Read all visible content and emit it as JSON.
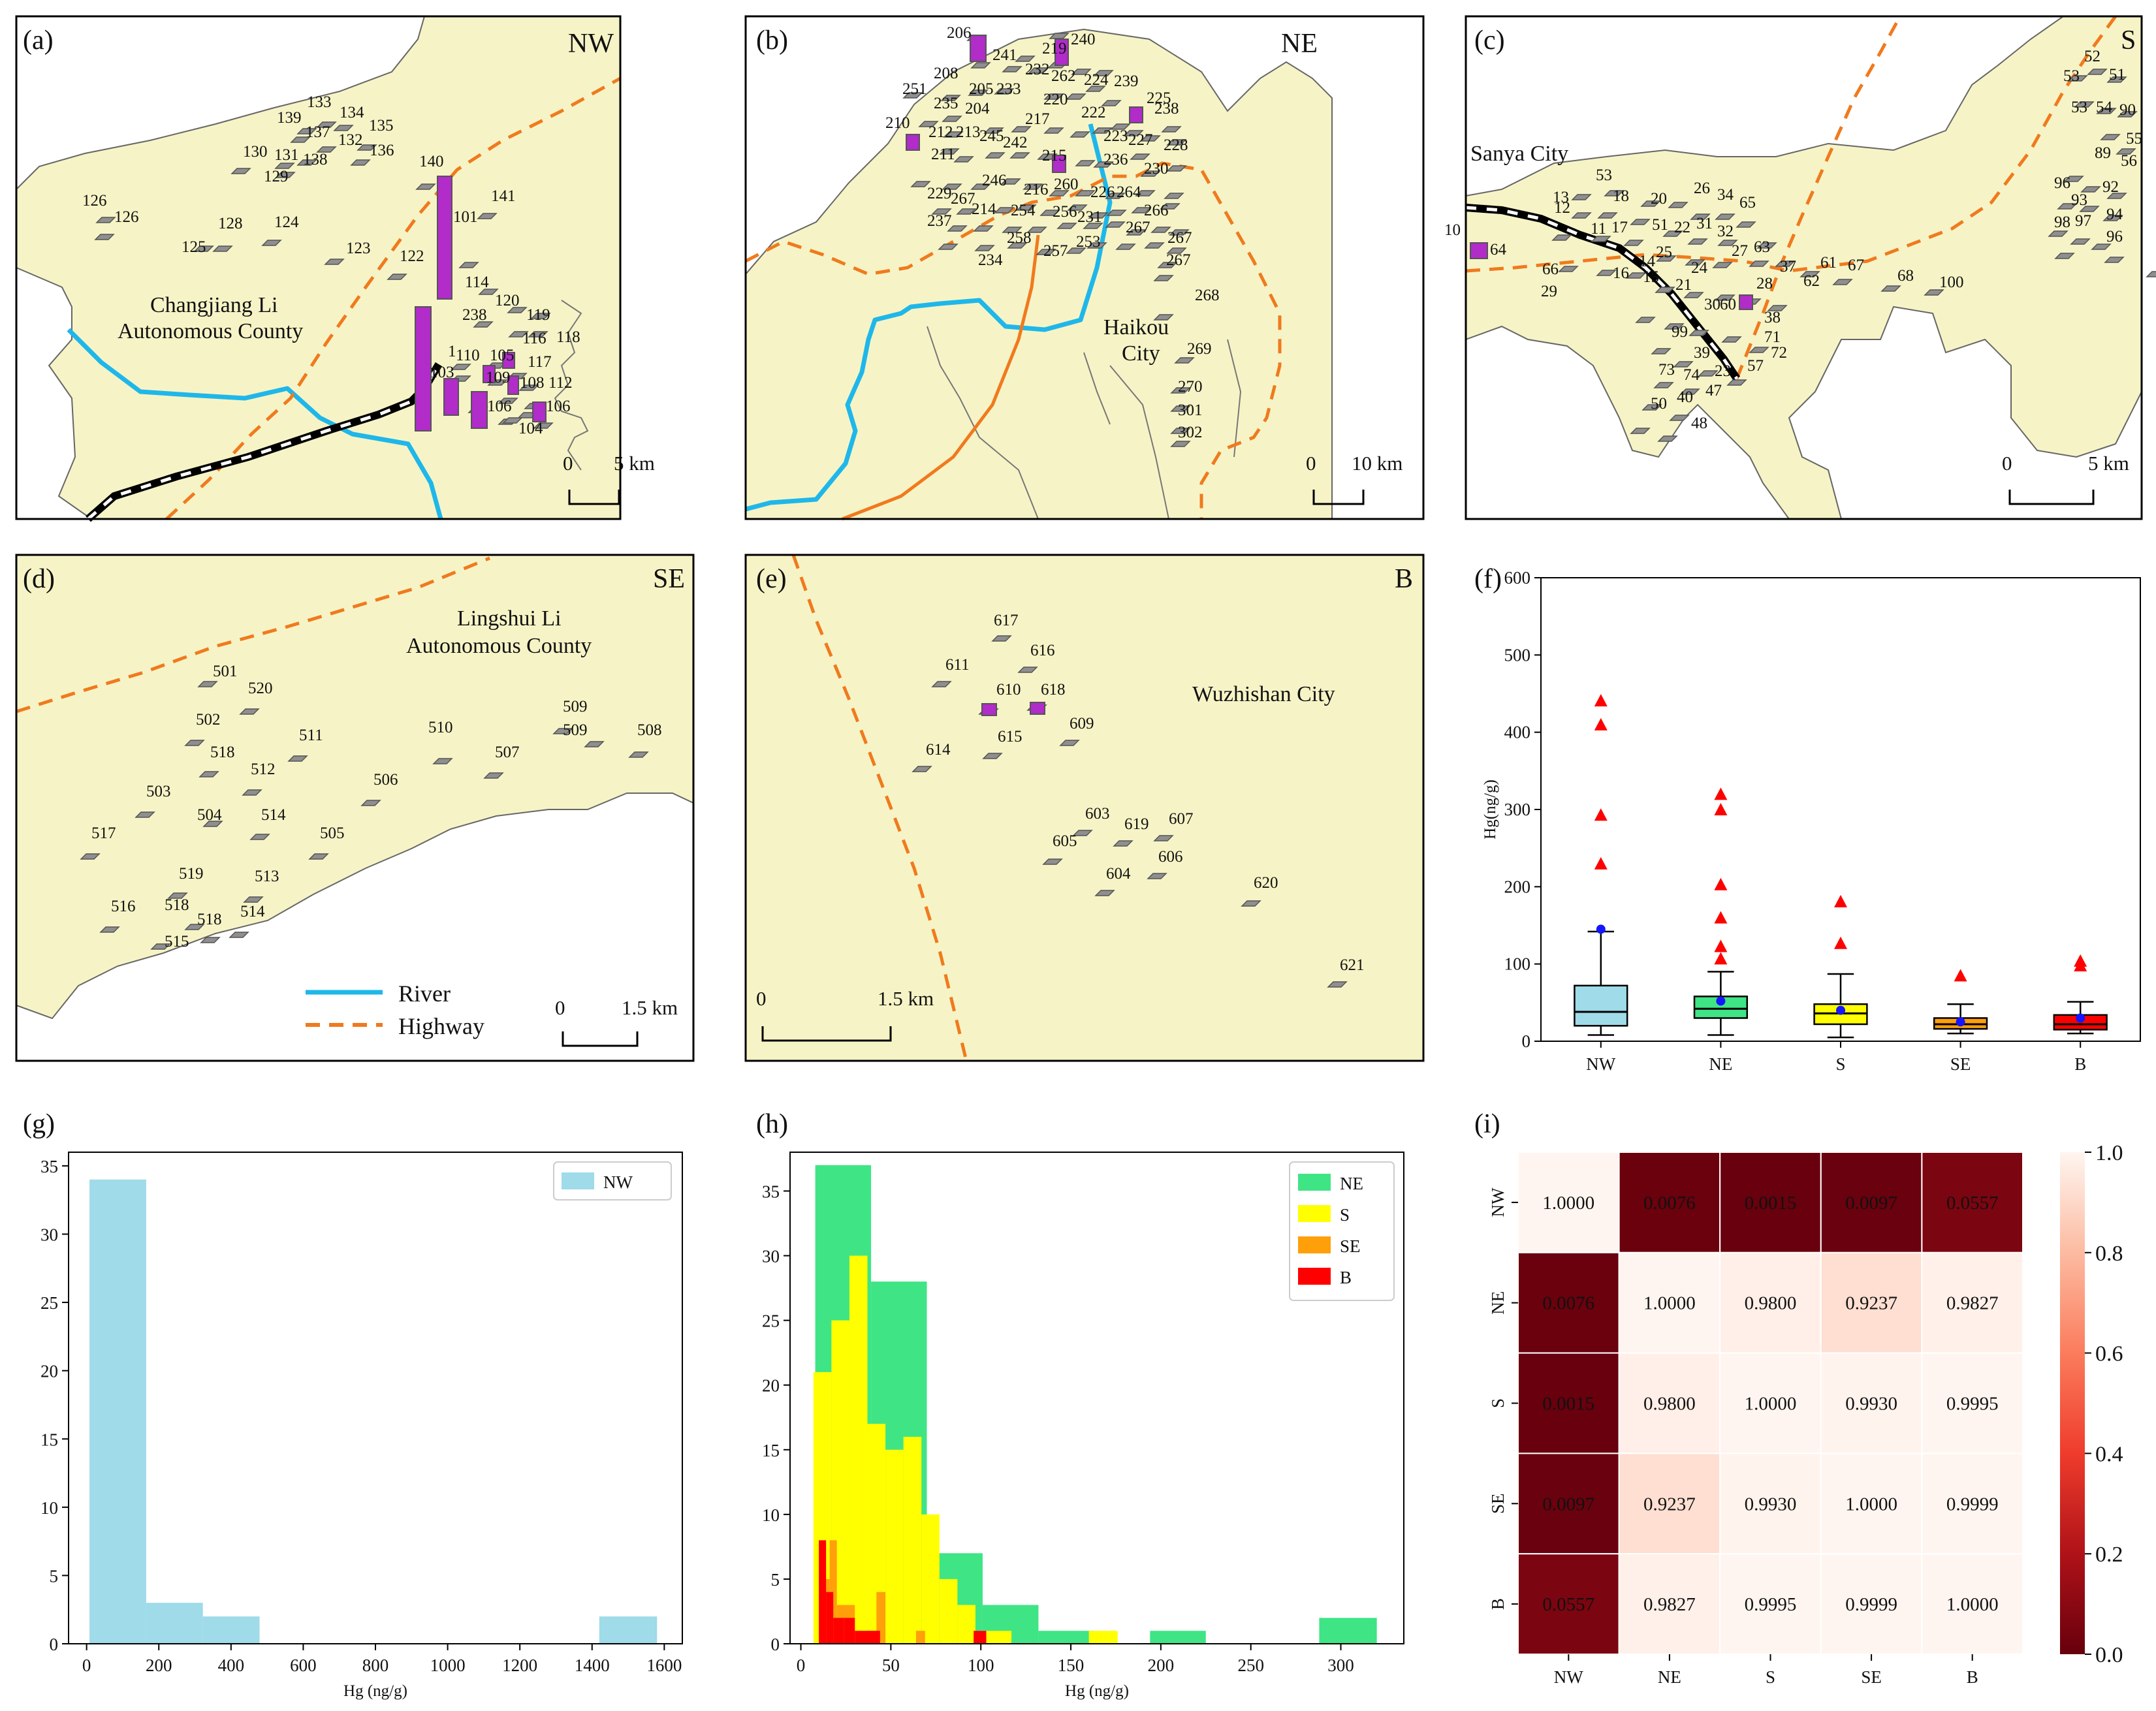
{
  "colors": {
    "land": "#f6f4c6",
    "sea": "#ffffff",
    "river": "#1fb7ea",
    "highway": "#f07a1e",
    "railway": "#000000",
    "sample_fill": "#8f8f8f",
    "sample_high": "#b12cc9",
    "nw": "#9fdbe9",
    "ne": "#3fe585",
    "s": "#ffff00",
    "se": "#ff9f0a",
    "b": "#ff0000",
    "outlier": "#ff0000",
    "mean": "#1515ff"
  },
  "maps": [
    {
      "id": "a",
      "panel": "(a)",
      "region": "NW",
      "places": [
        "Changjiang Li",
        "Autonomous County"
      ],
      "scale": [
        "0",
        "5 km"
      ],
      "labels": [
        "126",
        "126",
        "139",
        "133",
        "134",
        "137",
        "135",
        "132",
        "136",
        "130",
        "131",
        "138",
        "129",
        "140",
        "141",
        "128",
        "124",
        "125",
        "123",
        "122",
        "101",
        "114",
        "120",
        "238",
        "119",
        "116",
        "118",
        "110",
        "105",
        "117",
        "103",
        "108",
        "109",
        "112",
        "106",
        "106",
        "104",
        "1"
      ]
    },
    {
      "id": "b",
      "panel": "(b)",
      "region": "NE",
      "places": [
        "Haikou",
        "City"
      ],
      "scale": [
        "0",
        "10 km"
      ],
      "labels": [
        "206",
        "240",
        "219",
        "241",
        "208",
        "232",
        "262",
        "224",
        "239",
        "251",
        "205",
        "233",
        "220",
        "225",
        "235",
        "204",
        "222",
        "238",
        "210",
        "212",
        "213",
        "245",
        "217",
        "223",
        "227",
        "228",
        "211",
        "242",
        "215",
        "236",
        "230",
        "229",
        "246",
        "216",
        "260",
        "226",
        "264",
        "266",
        "267",
        "237",
        "214",
        "254",
        "256",
        "231",
        "267",
        "258",
        "257",
        "253",
        "267",
        "234",
        "267",
        "268",
        "269",
        "270",
        "301",
        "302"
      ]
    },
    {
      "id": "c",
      "panel": "(c)",
      "region": "S",
      "places": [
        "Sanya City"
      ],
      "scale": [
        "0",
        "5 km"
      ],
      "labels": [
        "52",
        "53",
        "51",
        "53",
        "54",
        "90",
        "55",
        "89",
        "56",
        "96",
        "92",
        "93",
        "98",
        "97",
        "94",
        "96",
        "13",
        "53",
        "18",
        "20",
        "26",
        "34",
        "65",
        "10",
        "12",
        "11",
        "17",
        "51",
        "22",
        "31",
        "32",
        "64",
        "27",
        "63",
        "66",
        "16",
        "15",
        "25",
        "24",
        "37",
        "61",
        "67",
        "29",
        "14",
        "28",
        "62",
        "68",
        "100",
        "99",
        "21",
        "30",
        "60",
        "38",
        "71",
        "72",
        "73",
        "39",
        "23",
        "57",
        "74",
        "40",
        "47",
        "50",
        "48",
        "49"
      ]
    },
    {
      "id": "d",
      "panel": "(d)",
      "region": "SE",
      "places": [
        "Lingshui Li",
        "Autonomous County"
      ],
      "scale": [
        "0",
        "1.5 km"
      ],
      "labels": [
        "501",
        "520",
        "509",
        "509",
        "508",
        "502",
        "511",
        "510",
        "507",
        "518",
        "512",
        "506",
        "503",
        "504",
        "514",
        "505",
        "517",
        "519",
        "513",
        "516",
        "518",
        "514",
        "518",
        "515"
      ],
      "legend": [
        "River",
        "Highway"
      ]
    },
    {
      "id": "e",
      "panel": "(e)",
      "region": "B",
      "places": [
        "Wuzhishan City"
      ],
      "scale": [
        "0",
        "1.5 km"
      ],
      "labels": [
        "617",
        "616",
        "611",
        "610",
        "618",
        "609",
        "615",
        "614",
        "603",
        "607",
        "619",
        "605",
        "606",
        "604",
        "620",
        "621"
      ]
    }
  ],
  "chart_data": [
    {
      "panel": "(f)",
      "type": "box",
      "categories": [
        "NW",
        "NE",
        "S",
        "SE",
        "B"
      ],
      "ylabel": "Hg(ng/g)",
      "ylim": [
        0,
        600
      ],
      "yticks": [
        "0",
        "100",
        "200",
        "300",
        "400",
        "500",
        "600"
      ],
      "boxes": [
        {
          "name": "NW",
          "whisker_low": 8,
          "q1": 20,
          "median": 38,
          "q3": 72,
          "whisker_high": 142,
          "mean": 145,
          "outliers": [
            230,
            293,
            410,
            441
          ]
        },
        {
          "name": "NE",
          "whisker_low": 8,
          "q1": 30,
          "median": 42,
          "q3": 58,
          "whisker_high": 90,
          "mean": 52,
          "outliers": [
            107,
            123,
            160,
            203,
            300,
            320
          ]
        },
        {
          "name": "S",
          "whisker_low": 5,
          "q1": 22,
          "median": 36,
          "q3": 48,
          "whisker_high": 87,
          "mean": 40,
          "outliers": [
            127,
            181
          ]
        },
        {
          "name": "SE",
          "whisker_low": 10,
          "q1": 16,
          "median": 22,
          "q3": 30,
          "whisker_high": 48,
          "mean": 25,
          "outliers": [
            85
          ]
        },
        {
          "name": "B",
          "whisker_low": 10,
          "q1": 15,
          "median": 22,
          "q3": 34,
          "whisker_high": 51,
          "mean": 30,
          "outliers": [
            98,
            104
          ]
        }
      ]
    },
    {
      "panel": "(g)",
      "type": "histogram",
      "xlabel": "Hg (ng/g)",
      "xlim": [
        -50,
        1650
      ],
      "ylim": [
        0,
        36
      ],
      "xticks": [
        "0",
        "200",
        "400",
        "600",
        "800",
        "1000",
        "1200",
        "1400",
        "1600"
      ],
      "yticks": [
        "0",
        "5",
        "10",
        "15",
        "20",
        "25",
        "30",
        "35"
      ],
      "legend": [
        "NW"
      ],
      "series": [
        {
          "name": "NW",
          "bins": [
            [
              8,
              165,
              34
            ],
            [
              165,
              322,
              3
            ],
            [
              322,
              479,
              2
            ],
            [
              1420,
              1580,
              2
            ]
          ]
        }
      ]
    },
    {
      "panel": "(h)",
      "type": "histogram",
      "xlabel": "Hg (ng/g)",
      "xlim": [
        -6,
        335
      ],
      "ylim": [
        0,
        38
      ],
      "xticks": [
        "0",
        "50",
        "100",
        "150",
        "200",
        "250",
        "300"
      ],
      "yticks": [
        "0",
        "5",
        "10",
        "15",
        "20",
        "25",
        "30",
        "35"
      ],
      "legend": [
        "NE",
        "S",
        "SE",
        "B"
      ],
      "series": [
        {
          "name": "NE",
          "bins": [
            [
              8,
              39,
              37
            ],
            [
              39,
              70,
              28
            ],
            [
              70,
              101,
              7
            ],
            [
              101,
              132,
              3
            ],
            [
              132,
              163,
              1
            ],
            [
              194,
              225,
              1
            ],
            [
              288,
              320,
              2
            ]
          ]
        },
        {
          "name": "S",
          "bins": [
            [
              7,
              17,
              21
            ],
            [
              17,
              27,
              25
            ],
            [
              27,
              37,
              30
            ],
            [
              37,
              47,
              17
            ],
            [
              47,
              57,
              15
            ],
            [
              57,
              67,
              16
            ],
            [
              67,
              77,
              10
            ],
            [
              77,
              87,
              5
            ],
            [
              87,
              97,
              3
            ],
            [
              97,
              107,
              1
            ],
            [
              107,
              117,
              1
            ],
            [
              160,
              176,
              1
            ]
          ]
        },
        {
          "name": "SE",
          "bins": [
            [
              12,
              16,
              5
            ],
            [
              16,
              20,
              8
            ],
            [
              20,
              25,
              3
            ],
            [
              25,
              30,
              3
            ],
            [
              37,
              42,
              1
            ],
            [
              42,
              47,
              4
            ],
            [
              64,
              69,
              1
            ]
          ]
        },
        {
          "name": "B",
          "bins": [
            [
              10,
              14,
              8
            ],
            [
              14,
              18,
              4
            ],
            [
              18,
              24,
              2
            ],
            [
              24,
              30,
              2
            ],
            [
              30,
              37,
              1
            ],
            [
              37,
              44,
              1
            ],
            [
              96,
              103,
              1
            ]
          ]
        }
      ]
    },
    {
      "panel": "(i)",
      "type": "heatmap",
      "x": [
        "NW",
        "NE",
        "S",
        "SE",
        "B"
      ],
      "y": [
        "NW",
        "NE",
        "S",
        "SE",
        "B"
      ],
      "values": [
        [
          1.0,
          0.0076,
          0.0015,
          0.0097,
          0.0557
        ],
        [
          0.0076,
          1.0,
          0.98,
          0.9237,
          0.9827
        ],
        [
          0.0015,
          0.98,
          1.0,
          0.993,
          0.9995
        ],
        [
          0.0097,
          0.9237,
          0.993,
          1.0,
          0.9999
        ],
        [
          0.0557,
          0.9827,
          0.9995,
          0.9999,
          1.0
        ]
      ],
      "value_labels": [
        [
          "1.0000",
          "0.0076",
          "0.0015",
          "0.0097",
          "0.0557"
        ],
        [
          "0.0076",
          "1.0000",
          "0.9800",
          "0.9237",
          "0.9827"
        ],
        [
          "0.0015",
          "0.9800",
          "1.0000",
          "0.9930",
          "0.9995"
        ],
        [
          "0.0097",
          "0.9237",
          "0.9930",
          "1.0000",
          "0.9999"
        ],
        [
          "0.0557",
          "0.9827",
          "0.9995",
          "0.9999",
          "1.0000"
        ]
      ],
      "colorbar": {
        "range": [
          0,
          1
        ],
        "ticks": [
          "0.0",
          "0.2",
          "0.4",
          "0.6",
          "0.8",
          "1.0"
        ]
      }
    }
  ]
}
